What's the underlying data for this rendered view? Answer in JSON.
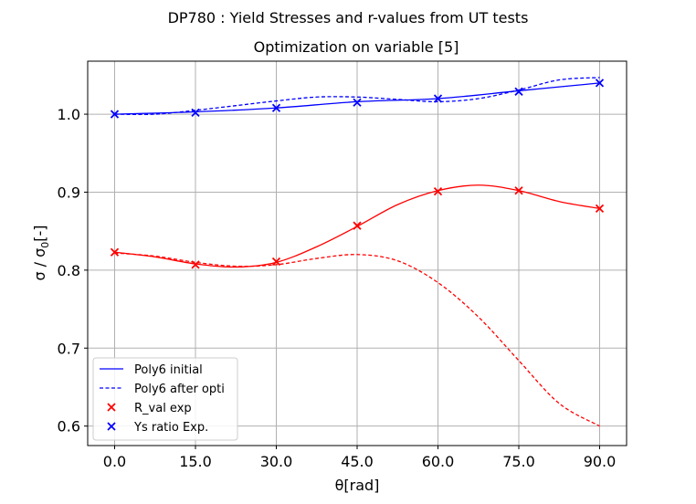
{
  "figure": {
    "suptitle": "DP780 : Yield Stresses and r-values from UT tests"
  },
  "chart_data": {
    "type": "line",
    "title": "Optimization on variable [5]",
    "xlabel": "θ[rad]",
    "ylabel_parts": {
      "main": "σ / σ",
      "sub": "0",
      "tail": "[-]"
    },
    "xlim": [
      -5,
      95
    ],
    "ylim": [
      0.575,
      1.068
    ],
    "grid": true,
    "legend_position": "lower-left",
    "x_ticks": [
      0,
      15,
      30,
      45,
      60,
      75,
      90
    ],
    "x_tick_labels": [
      "0.0",
      "15.0",
      "30.0",
      "45.0",
      "60.0",
      "75.0",
      "90.0"
    ],
    "y_ticks": [
      0.6,
      0.7,
      0.8,
      0.9,
      1.0
    ],
    "y_tick_labels": [
      "0.6",
      "0.7",
      "0.8",
      "0.9",
      "1.0"
    ],
    "series": [
      {
        "name": "Poly6 initial",
        "kind": "line",
        "style": "solid",
        "color": "#0000ff",
        "x": [
          0,
          15,
          30,
          45,
          60,
          75,
          90
        ],
        "y": [
          1.0,
          1.003,
          1.008,
          1.016,
          1.02,
          1.03,
          1.04
        ]
      },
      {
        "name": "Poly6 after opti",
        "kind": "line",
        "style": "dashed",
        "color": "#0000ff",
        "x": [
          0,
          7.5,
          15,
          22.5,
          30,
          37.5,
          45,
          52.5,
          60,
          67.5,
          75,
          82.5,
          90
        ],
        "y": [
          1.0,
          1.0,
          1.005,
          1.011,
          1.017,
          1.022,
          1.022,
          1.019,
          1.016,
          1.02,
          1.031,
          1.044,
          1.047
        ]
      },
      {
        "name": "",
        "kind": "line",
        "style": "solid",
        "color": "#ff0000",
        "x": [
          0,
          7.5,
          15,
          22.5,
          30,
          37.5,
          45,
          52.5,
          60,
          67.5,
          75,
          82.5,
          90
        ],
        "y": [
          0.823,
          0.817,
          0.808,
          0.804,
          0.81,
          0.83,
          0.856,
          0.884,
          0.902,
          0.909,
          0.902,
          0.888,
          0.879
        ]
      },
      {
        "name": "",
        "kind": "line",
        "style": "dashed",
        "color": "#ff0000",
        "x": [
          0,
          7.5,
          15,
          22.5,
          30,
          37.5,
          45,
          52.5,
          60,
          67.5,
          75,
          82.5,
          90
        ],
        "y": [
          0.822,
          0.818,
          0.81,
          0.805,
          0.807,
          0.815,
          0.82,
          0.812,
          0.784,
          0.74,
          0.684,
          0.629,
          0.6
        ]
      },
      {
        "name": "R_val exp",
        "kind": "scatter",
        "marker": "x",
        "color": "#ff0000",
        "x": [
          0,
          15,
          30,
          45,
          60,
          75,
          90
        ],
        "y": [
          0.823,
          0.807,
          0.811,
          0.857,
          0.901,
          0.902,
          0.879
        ]
      },
      {
        "name": "Ys ratio Exp.",
        "kind": "scatter",
        "marker": "x",
        "color": "#0000ff",
        "x": [
          0,
          15,
          30,
          45,
          60,
          75,
          90
        ],
        "y": [
          1.0,
          1.002,
          1.008,
          1.015,
          1.02,
          1.029,
          1.04
        ]
      }
    ]
  }
}
